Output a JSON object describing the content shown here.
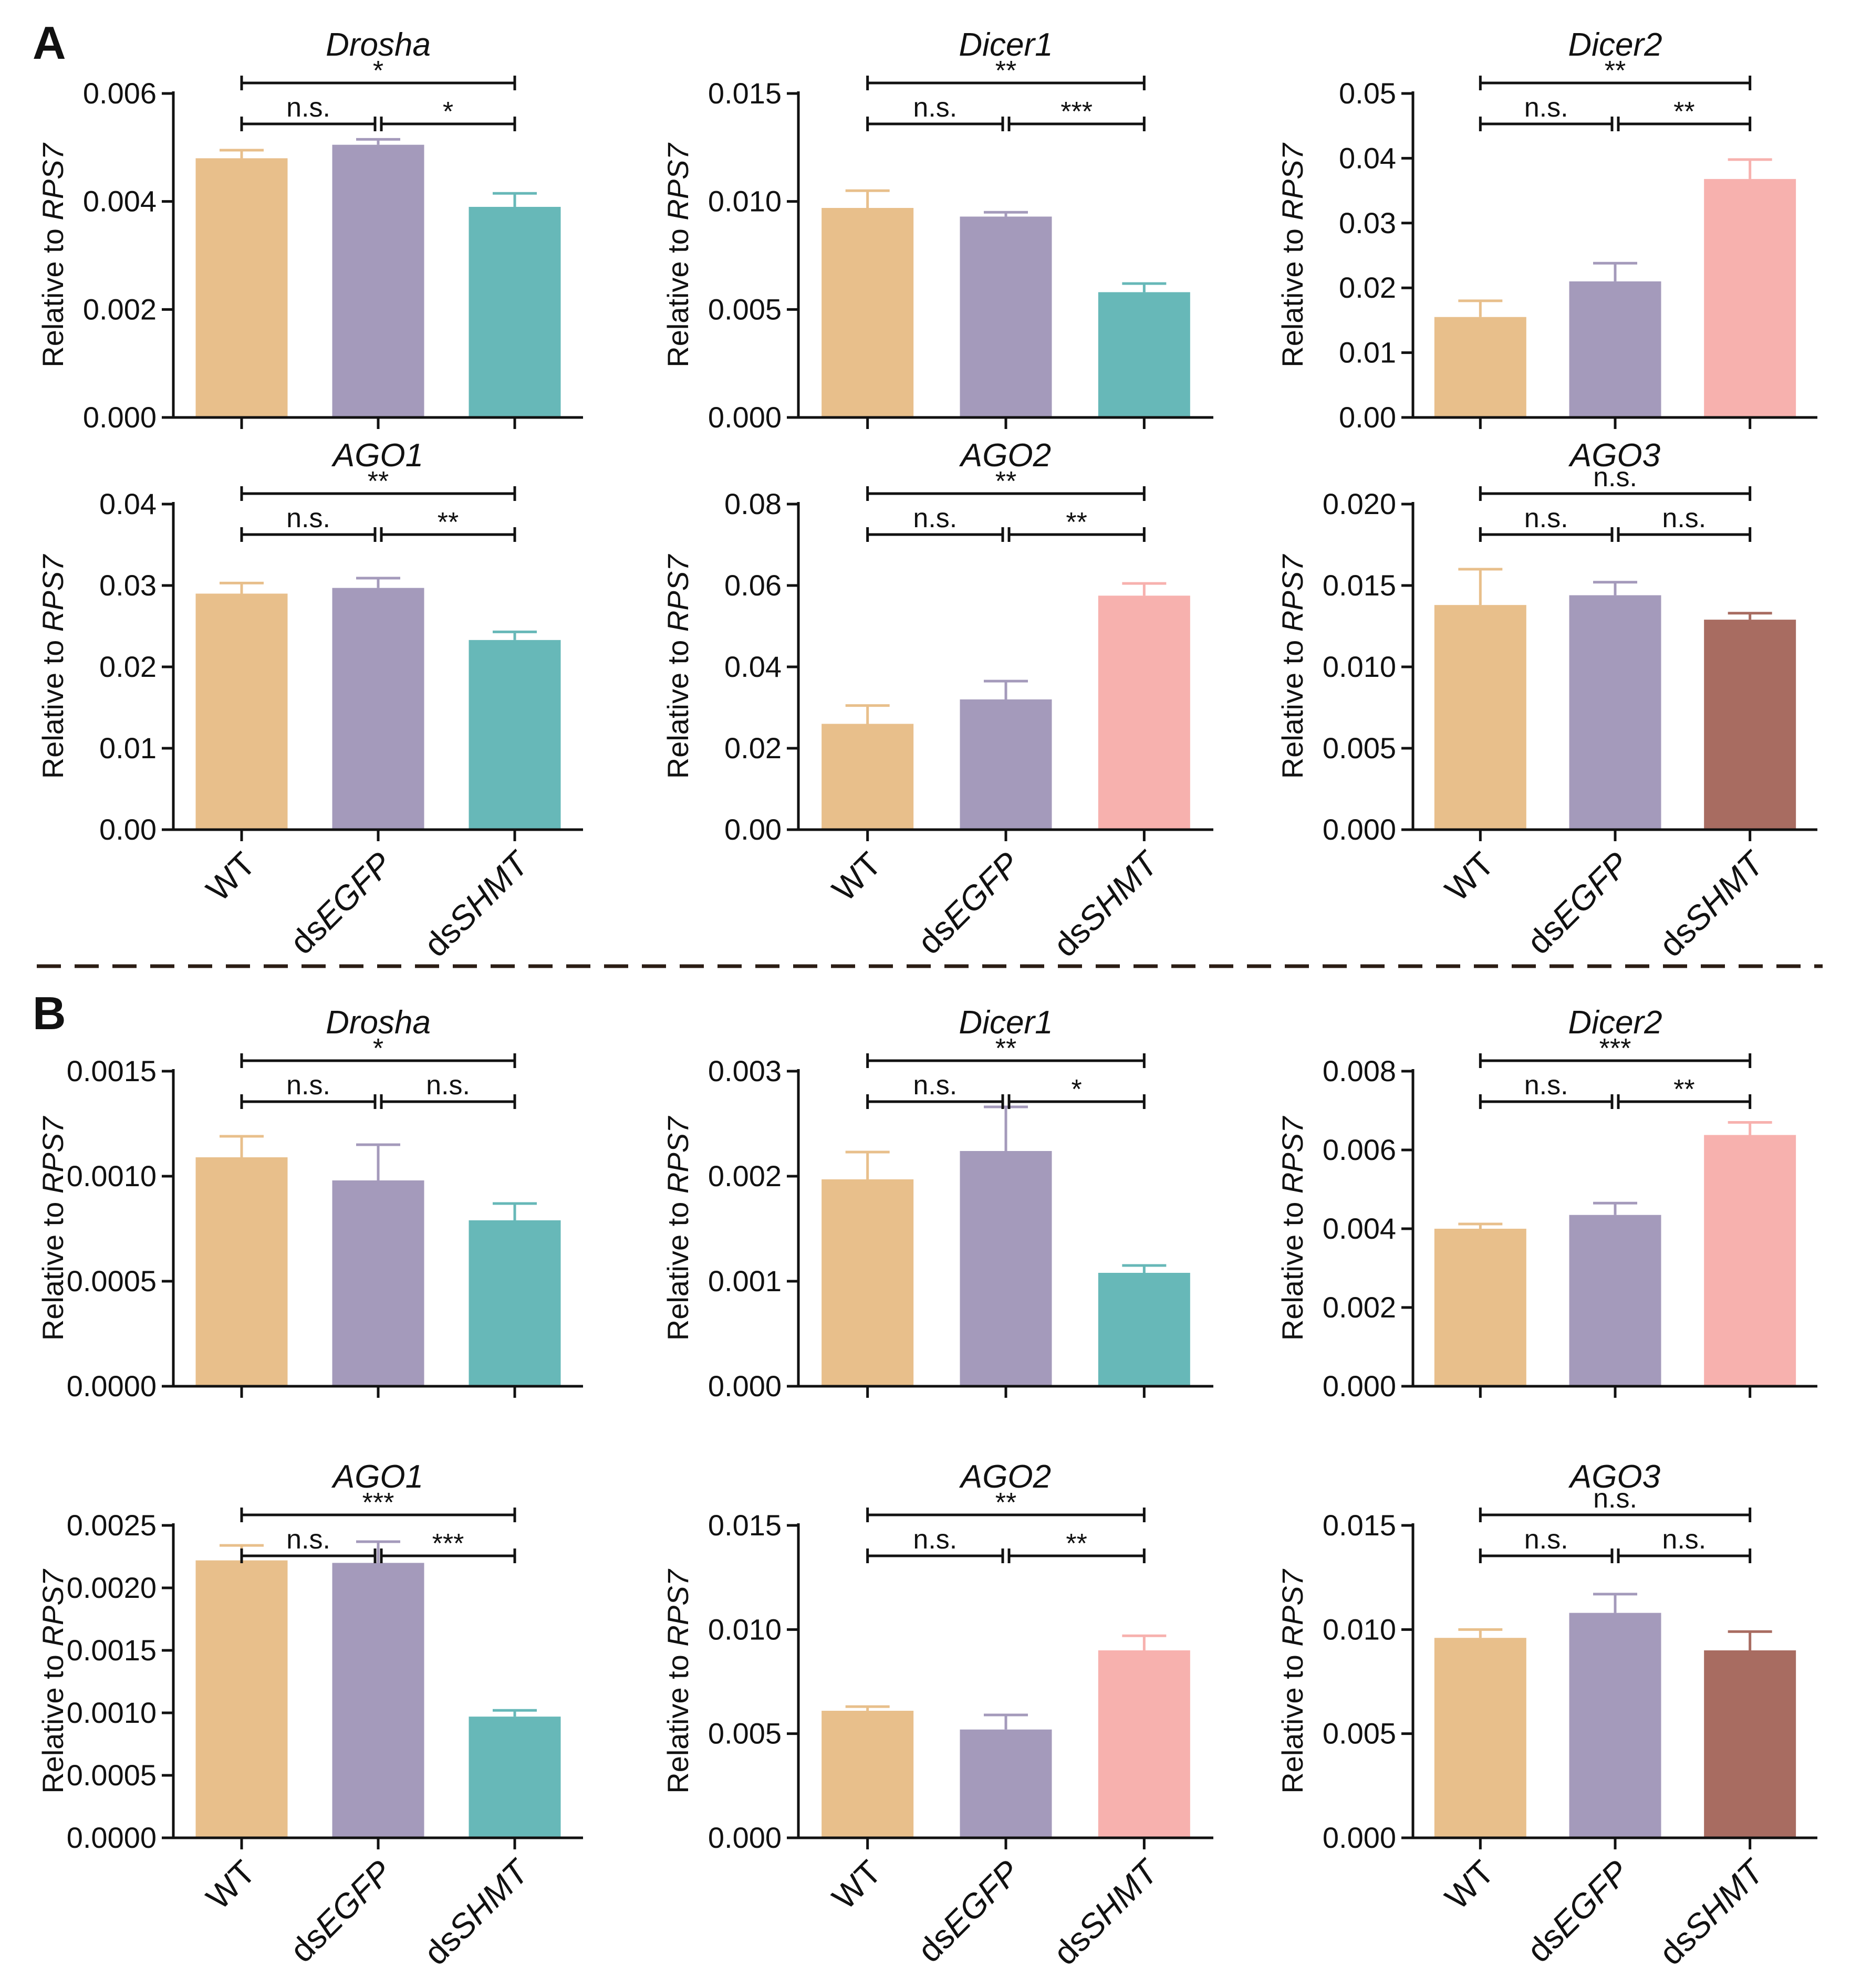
{
  "palette": {
    "WT": "#E8BF8B",
    "dsEGFP": "#A49ABB",
    "dsSHMT_teal": "#67B8B8",
    "dsSHMT_pink": "#F7B1AE",
    "dsSHMT_brown": "#A86C61"
  },
  "labels": {
    "panelA": "A",
    "panelB": "B",
    "ylabel_prefix": "Relative to ",
    "ylabel_gene": "RPS7",
    "categories": [
      "WT",
      "dsEGFP",
      "dsSHMT"
    ]
  },
  "chart_data": [
    {
      "panel": "A",
      "type": "bar",
      "title": "Drosha",
      "categories": [
        "WT",
        "dsEGFP",
        "dsSHMT"
      ],
      "values": [
        0.0048,
        0.00505,
        0.0039
      ],
      "errors": [
        0.00015,
        0.0001,
        0.00025
      ],
      "ylim": [
        0,
        0.006
      ],
      "ticks": [
        "0.000",
        "0.002",
        "0.004",
        "0.006"
      ],
      "dsSHMT_color": "teal",
      "brackets": [
        {
          "from": 0,
          "to": 2,
          "label": "*"
        },
        {
          "from": 0,
          "to": 1,
          "label": "n.s."
        },
        {
          "from": 1,
          "to": 2,
          "label": "*"
        }
      ]
    },
    {
      "panel": "A",
      "type": "bar",
      "title": "Dicer1",
      "categories": [
        "WT",
        "dsEGFP",
        "dsSHMT"
      ],
      "values": [
        0.0097,
        0.0093,
        0.0058
      ],
      "errors": [
        0.0008,
        0.0002,
        0.0004
      ],
      "ylim": [
        0,
        0.015
      ],
      "ticks": [
        "0.000",
        "0.005",
        "0.010",
        "0.015"
      ],
      "dsSHMT_color": "teal",
      "brackets": [
        {
          "from": 0,
          "to": 2,
          "label": "**"
        },
        {
          "from": 0,
          "to": 1,
          "label": "n.s."
        },
        {
          "from": 1,
          "to": 2,
          "label": "***"
        }
      ]
    },
    {
      "panel": "A",
      "type": "bar",
      "title": "Dicer2",
      "categories": [
        "WT",
        "dsEGFP",
        "dsSHMT"
      ],
      "values": [
        0.0155,
        0.021,
        0.0368
      ],
      "errors": [
        0.0025,
        0.0028,
        0.003
      ],
      "ylim": [
        0,
        0.05
      ],
      "ticks": [
        "0.00",
        "0.01",
        "0.02",
        "0.03",
        "0.04",
        "0.05"
      ],
      "dsSHMT_color": "pink",
      "brackets": [
        {
          "from": 0,
          "to": 2,
          "label": "**"
        },
        {
          "from": 1,
          "to": 2,
          "label": "**"
        },
        {
          "from": 0,
          "to": 1,
          "label": "n.s."
        }
      ]
    },
    {
      "panel": "A",
      "type": "bar",
      "title": "AGO1",
      "categories": [
        "WT",
        "dsEGFP",
        "dsSHMT"
      ],
      "values": [
        0.029,
        0.0297,
        0.0233
      ],
      "errors": [
        0.0013,
        0.0012,
        0.001
      ],
      "ylim": [
        0,
        0.04
      ],
      "ticks": [
        "0.00",
        "0.01",
        "0.02",
        "0.03",
        "0.04"
      ],
      "dsSHMT_color": "teal",
      "brackets": [
        {
          "from": 0,
          "to": 2,
          "label": "**"
        },
        {
          "from": 0,
          "to": 1,
          "label": "n.s."
        },
        {
          "from": 1,
          "to": 2,
          "label": "**"
        }
      ]
    },
    {
      "panel": "A",
      "type": "bar",
      "title": "AGO2",
      "categories": [
        "WT",
        "dsEGFP",
        "dsSHMT"
      ],
      "values": [
        0.026,
        0.032,
        0.0575
      ],
      "errors": [
        0.0045,
        0.0045,
        0.003
      ],
      "ylim": [
        0,
        0.08
      ],
      "ticks": [
        "0.00",
        "0.02",
        "0.04",
        "0.06",
        "0.08"
      ],
      "dsSHMT_color": "pink",
      "brackets": [
        {
          "from": 0,
          "to": 2,
          "label": "**"
        },
        {
          "from": 1,
          "to": 2,
          "label": "**"
        },
        {
          "from": 0,
          "to": 1,
          "label": "n.s."
        }
      ]
    },
    {
      "panel": "A",
      "type": "bar",
      "title": "AGO3",
      "categories": [
        "WT",
        "dsEGFP",
        "dsSHMT"
      ],
      "values": [
        0.0138,
        0.0144,
        0.0129
      ],
      "errors": [
        0.0022,
        0.0008,
        0.0004
      ],
      "ylim": [
        0,
        0.02
      ],
      "ticks": [
        "0.000",
        "0.005",
        "0.010",
        "0.015",
        "0.020"
      ],
      "dsSHMT_color": "brown",
      "brackets": [
        {
          "from": 0,
          "to": 2,
          "label": "n.s."
        },
        {
          "from": 0,
          "to": 1,
          "label": "n.s."
        },
        {
          "from": 1,
          "to": 2,
          "label": "n.s."
        }
      ]
    },
    {
      "panel": "B",
      "type": "bar",
      "title": "Drosha",
      "categories": [
        "WT",
        "dsEGFP",
        "dsSHMT"
      ],
      "values": [
        0.00109,
        0.00098,
        0.00079
      ],
      "errors": [
        0.0001,
        0.00017,
        8e-05
      ],
      "ylim": [
        0,
        0.0015
      ],
      "ticks": [
        "0.0000",
        "0.0005",
        "0.0010",
        "0.0015"
      ],
      "dsSHMT_color": "teal",
      "brackets": [
        {
          "from": 0,
          "to": 2,
          "label": "*"
        },
        {
          "from": 0,
          "to": 1,
          "label": "n.s."
        },
        {
          "from": 1,
          "to": 2,
          "label": "n.s."
        }
      ]
    },
    {
      "panel": "B",
      "type": "bar",
      "title": "Dicer1",
      "categories": [
        "WT",
        "dsEGFP",
        "dsSHMT"
      ],
      "values": [
        0.00197,
        0.00224,
        0.00108
      ],
      "errors": [
        0.00026,
        0.00042,
        7e-05
      ],
      "ylim": [
        0,
        0.003
      ],
      "ticks": [
        "0.000",
        "0.001",
        "0.002",
        "0.003"
      ],
      "dsSHMT_color": "teal",
      "brackets": [
        {
          "from": 0,
          "to": 2,
          "label": "**"
        },
        {
          "from": 0,
          "to": 1,
          "label": "n.s."
        },
        {
          "from": 1,
          "to": 2,
          "label": "*"
        }
      ]
    },
    {
      "panel": "B",
      "type": "bar",
      "title": "Dicer2",
      "categories": [
        "WT",
        "dsEGFP",
        "dsSHMT"
      ],
      "values": [
        0.004,
        0.00435,
        0.00638
      ],
      "errors": [
        0.00012,
        0.0003,
        0.00032
      ],
      "ylim": [
        0,
        0.008
      ],
      "ticks": [
        "0.000",
        "0.002",
        "0.004",
        "0.006",
        "0.008"
      ],
      "dsSHMT_color": "pink",
      "brackets": [
        {
          "from": 0,
          "to": 2,
          "label": "***"
        },
        {
          "from": 1,
          "to": 2,
          "label": "**"
        },
        {
          "from": 0,
          "to": 1,
          "label": "n.s."
        }
      ]
    },
    {
      "panel": "B",
      "type": "bar",
      "title": "AGO1",
      "categories": [
        "WT",
        "dsEGFP",
        "dsSHMT"
      ],
      "values": [
        0.00222,
        0.0022,
        0.00097
      ],
      "errors": [
        0.00012,
        0.00017,
        5e-05
      ],
      "ylim": [
        0,
        0.0025
      ],
      "ticks": [
        "0.0000",
        "0.0005",
        "0.0010",
        "0.0015",
        "0.0020",
        "0.0025"
      ],
      "dsSHMT_color": "teal",
      "brackets": [
        {
          "from": 0,
          "to": 2,
          "label": "***"
        },
        {
          "from": 0,
          "to": 1,
          "label": "n.s."
        },
        {
          "from": 1,
          "to": 2,
          "label": "***"
        }
      ]
    },
    {
      "panel": "B",
      "type": "bar",
      "title": "AGO2",
      "categories": [
        "WT",
        "dsEGFP",
        "dsSHMT"
      ],
      "values": [
        0.0061,
        0.0052,
        0.009
      ],
      "errors": [
        0.0002,
        0.0007,
        0.0007
      ],
      "ylim": [
        0,
        0.015
      ],
      "ticks": [
        "0.000",
        "0.005",
        "0.010",
        "0.015"
      ],
      "dsSHMT_color": "pink",
      "brackets": [
        {
          "from": 0,
          "to": 2,
          "label": "**"
        },
        {
          "from": 1,
          "to": 2,
          "label": "**"
        },
        {
          "from": 0,
          "to": 1,
          "label": "n.s."
        }
      ]
    },
    {
      "panel": "B",
      "type": "bar",
      "title": "AGO3",
      "categories": [
        "WT",
        "dsEGFP",
        "dsSHMT"
      ],
      "values": [
        0.0096,
        0.0108,
        0.009
      ],
      "errors": [
        0.0004,
        0.0009,
        0.0009
      ],
      "ylim": [
        0,
        0.015
      ],
      "ticks": [
        "0.000",
        "0.005",
        "0.010",
        "0.015"
      ],
      "dsSHMT_color": "brown",
      "brackets": [
        {
          "from": 0,
          "to": 2,
          "label": "n.s."
        },
        {
          "from": 0,
          "to": 1,
          "label": "n.s."
        },
        {
          "from": 1,
          "to": 2,
          "label": "n.s."
        }
      ]
    }
  ]
}
